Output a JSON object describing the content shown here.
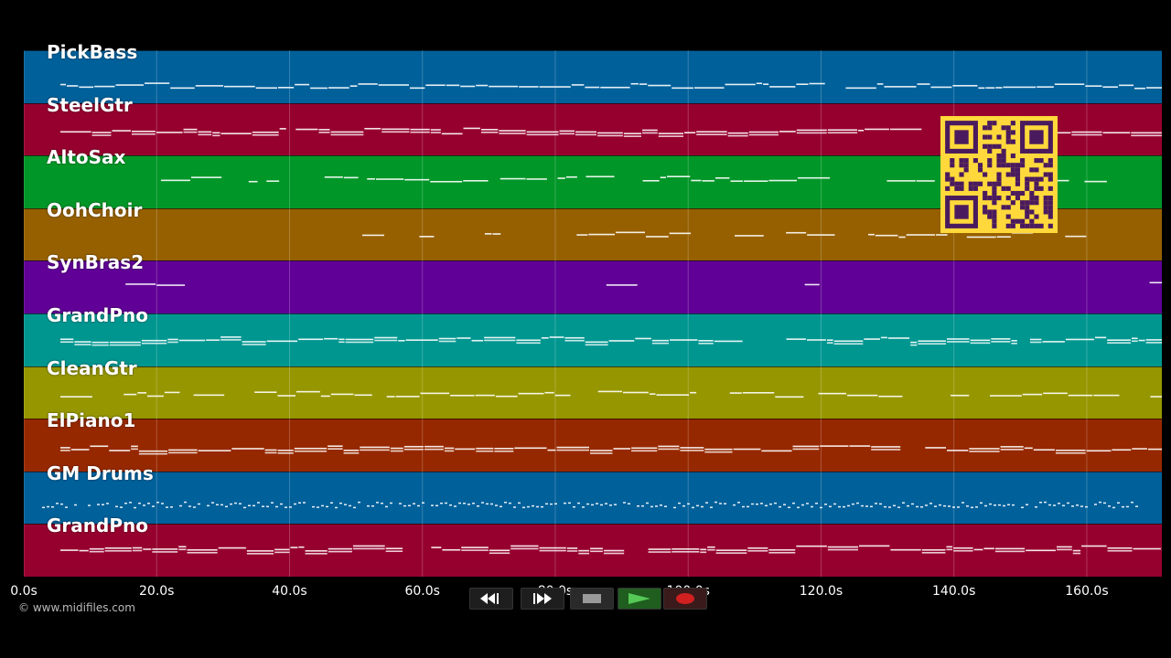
{
  "tracks": [
    {
      "name": "PickBass",
      "color": "#00609a"
    },
    {
      "name": "SteelGtr",
      "color": "#96002e"
    },
    {
      "name": "AltoSax",
      "color": "#009628"
    },
    {
      "name": "OohChoir",
      "color": "#966000"
    },
    {
      "name": "SynBras2",
      "color": "#600096"
    },
    {
      "name": "GrandPno",
      "color": "#009690"
    },
    {
      "name": "CleanGtr",
      "color": "#969600"
    },
    {
      "name": "ElPiano1",
      "color": "#962800"
    },
    {
      "name": "GM Drums",
      "color": "#00609a"
    },
    {
      "name": "GrandPno",
      "color": "#96002e"
    }
  ],
  "timeline": {
    "ticks": [
      "0.0s",
      "20.0s",
      "40.0s",
      "60.0s",
      "80.0s",
      "100.0s",
      "120.0s",
      "140.0s",
      "160.0s"
    ],
    "tick_seconds": [
      0,
      20,
      40,
      60,
      80,
      100,
      120,
      140,
      160
    ],
    "end_seconds": 171.3
  },
  "copyright": "© www.midifiles.com",
  "transport": {
    "buttons": [
      {
        "id": "rewind",
        "icon": "rewind-icon"
      },
      {
        "id": "fast-forward",
        "icon": "fast-forward-icon"
      },
      {
        "id": "stop",
        "icon": "stop-icon"
      },
      {
        "id": "play",
        "icon": "play-icon",
        "active_color": "#2e8b2e"
      },
      {
        "id": "record",
        "icon": "record-icon",
        "color": "#d02020"
      }
    ]
  },
  "overlay": {
    "qr_color": "#ffd93b",
    "qr_dark": "#4a1a5e"
  }
}
